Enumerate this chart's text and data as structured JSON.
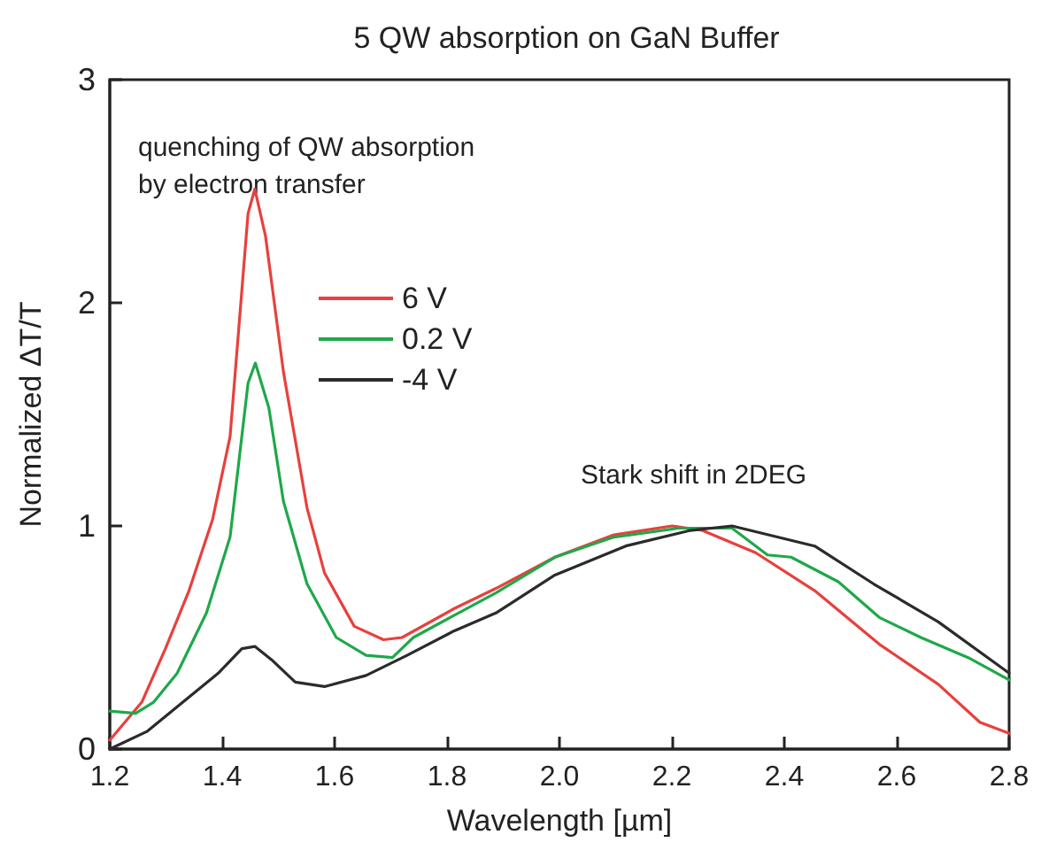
{
  "chart_data": {
    "type": "line",
    "title": "5 QW absorption on GaN Buffer",
    "xlabel": "Wavelength [µm]",
    "ylabel": "Normalized ΔT/T",
    "annotations": [
      "quenching of QW absorption\nby electron transfer",
      "Stark shift in 2DEG"
    ],
    "xlim": [
      1.2,
      2.8
    ],
    "xticks": [
      {
        "value": 1.2,
        "label": "1.2"
      },
      {
        "value": 1.4,
        "label": "1.4"
      },
      {
        "value": 1.6,
        "label": "1.6"
      },
      {
        "value": 1.8,
        "label": "1.8"
      },
      {
        "value": 2.0,
        "label": "2.0"
      },
      {
        "value": 2.2,
        "label": "2.2"
      },
      {
        "value": 2.4,
        "label": "2.4"
      },
      {
        "value": 2.6,
        "label": "2.6"
      },
      {
        "value": 2.8,
        "label": "2.8"
      }
    ],
    "ylim": [
      0,
      3
    ],
    "yticks": [
      0,
      1,
      2,
      3
    ],
    "grid": false,
    "legend": "top left",
    "marker": "none",
    "line_style": "solid",
    "series": [
      {
        "name": "6 V",
        "color": "#e8403c",
        "x": [
          1.2,
          1.257,
          1.299,
          1.341,
          1.383,
          1.414,
          1.446,
          1.458,
          1.477,
          1.509,
          1.551,
          1.582,
          1.635,
          1.687,
          1.72,
          1.813,
          1.887,
          1.992,
          2.097,
          2.2,
          2.254,
          2.349,
          2.454,
          2.569,
          2.674,
          2.748,
          2.8
        ],
        "values": [
          0.04,
          0.21,
          0.45,
          0.71,
          1.03,
          1.4,
          2.4,
          2.51,
          2.3,
          1.69,
          1.08,
          0.79,
          0.55,
          0.49,
          0.5,
          0.63,
          0.72,
          0.86,
          0.96,
          1.0,
          0.98,
          0.88,
          0.71,
          0.47,
          0.29,
          0.12,
          0.07
        ]
      },
      {
        "name": "0.2 V",
        "color": "#1fa84a",
        "x": [
          1.2,
          1.246,
          1.278,
          1.32,
          1.372,
          1.414,
          1.446,
          1.459,
          1.483,
          1.509,
          1.551,
          1.603,
          1.656,
          1.703,
          1.74,
          1.813,
          1.887,
          1.992,
          2.097,
          2.212,
          2.307,
          2.37,
          2.412,
          2.496,
          2.569,
          2.643,
          2.727,
          2.8
        ],
        "values": [
          0.17,
          0.16,
          0.21,
          0.34,
          0.61,
          0.95,
          1.64,
          1.73,
          1.53,
          1.11,
          0.74,
          0.5,
          0.42,
          0.41,
          0.5,
          0.6,
          0.7,
          0.86,
          0.95,
          0.99,
          0.99,
          0.87,
          0.86,
          0.75,
          0.59,
          0.5,
          0.41,
          0.31
        ]
      },
      {
        "name": "-4 V",
        "color": "#2b2b2b",
        "x": [
          1.2,
          1.267,
          1.33,
          1.393,
          1.435,
          1.458,
          1.488,
          1.53,
          1.582,
          1.656,
          1.729,
          1.813,
          1.887,
          1.992,
          2.118,
          2.233,
          2.307,
          2.454,
          2.559,
          2.674,
          2.8
        ],
        "values": [
          0.0,
          0.08,
          0.21,
          0.34,
          0.45,
          0.46,
          0.4,
          0.3,
          0.28,
          0.33,
          0.42,
          0.53,
          0.61,
          0.78,
          0.91,
          0.98,
          1.0,
          0.91,
          0.74,
          0.57,
          0.34
        ]
      }
    ]
  }
}
